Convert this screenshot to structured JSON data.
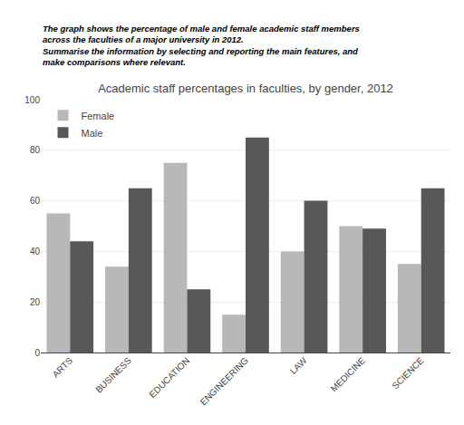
{
  "chart_data": {
    "type": "bar",
    "title": "Academic staff percentages in faculties, by gender, 2012",
    "annotations": [
      "The graph shows the percentage of male and female academic staff members",
      "across the faculties of a major university in 2012.",
      "Summarise the information by selecting and reporting the main features, and",
      "make comparisons where relevant."
    ],
    "categories": [
      "ARTS",
      "BUSINESS",
      "EDUCATION",
      "ENGINEERING",
      "LAW",
      "MEDICINE",
      "SCIENCE"
    ],
    "series": [
      {
        "name": "Female",
        "color": "#b8b8b8",
        "values": [
          55,
          34,
          75,
          15,
          40,
          50,
          35
        ]
      },
      {
        "name": "Male",
        "color": "#585858",
        "values": [
          44,
          65,
          25,
          85,
          60,
          49,
          65
        ]
      }
    ],
    "ylim": [
      0,
      100
    ],
    "yticks": [
      0,
      20,
      40,
      60,
      80,
      100
    ],
    "grid": true,
    "legend": "upper left"
  }
}
